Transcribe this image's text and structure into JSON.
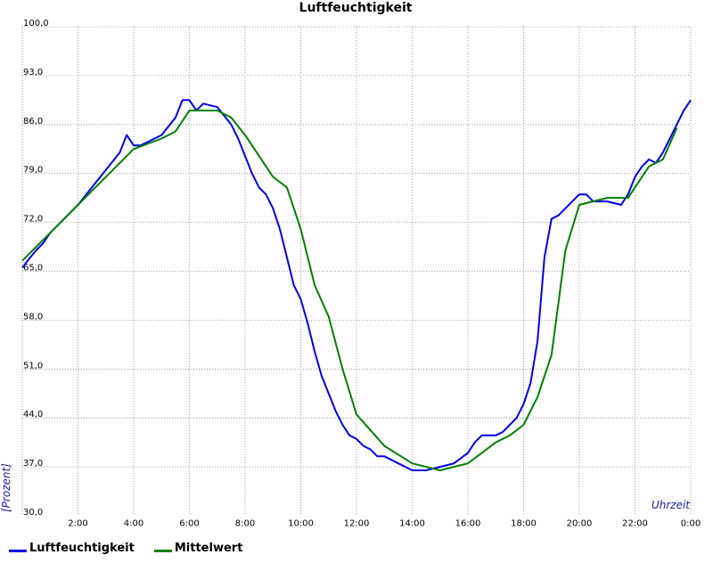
{
  "chart_data": {
    "type": "line",
    "title": "Luftfeuchtigkeit",
    "ylabel": "[Prozent]",
    "xlabel": "Uhrzeit",
    "ylim": [
      30,
      100
    ],
    "xlim": [
      0,
      24
    ],
    "y_ticks": [
      "30,0",
      "37,0",
      "44,0",
      "51,0",
      "58,0",
      "65,0",
      "72,0",
      "79,0",
      "86,0",
      "93,0",
      "100,0"
    ],
    "x_ticks": [
      "2:00",
      "4:00",
      "6:00",
      "8:00",
      "10:00",
      "12:00",
      "14:00",
      "16:00",
      "18:00",
      "20:00",
      "22:00",
      "0:00"
    ],
    "grid": true,
    "legend_position": "bottom-left",
    "series": [
      {
        "name": "Luftfeuchtigkeit",
        "color": "#0000ee",
        "x": [
          0,
          0.25,
          0.5,
          0.75,
          1,
          1.5,
          2,
          2.5,
          3,
          3.5,
          3.75,
          4,
          4.25,
          4.5,
          5,
          5.5,
          5.75,
          6,
          6.25,
          6.5,
          7,
          7.5,
          7.75,
          8,
          8.25,
          8.5,
          8.75,
          9,
          9.25,
          9.5,
          9.75,
          10,
          10.25,
          10.5,
          10.75,
          11,
          11.25,
          11.5,
          11.75,
          12,
          12.25,
          12.5,
          12.75,
          13,
          13.5,
          14,
          14.5,
          15,
          15.5,
          16,
          16.25,
          16.5,
          17,
          17.25,
          17.5,
          17.75,
          18,
          18.25,
          18.5,
          18.75,
          19,
          19.25,
          19.5,
          20,
          20.25,
          20.5,
          21,
          21.5,
          21.75,
          22,
          22.25,
          22.5,
          22.75,
          23,
          23.25,
          23.5,
          23.75,
          24
        ],
        "y": [
          65.5,
          66.8,
          68.0,
          69.0,
          70.5,
          72.5,
          74.5,
          77.0,
          79.5,
          82.0,
          84.5,
          83.0,
          83.0,
          83.5,
          84.5,
          87.0,
          89.5,
          89.5,
          88.0,
          89.0,
          88.5,
          86.0,
          84.0,
          81.5,
          79.0,
          77.0,
          76.0,
          74.0,
          71.0,
          67.0,
          63.0,
          61.0,
          57.5,
          53.5,
          50.0,
          47.5,
          45.0,
          43.0,
          41.5,
          41.0,
          40.0,
          39.5,
          38.5,
          38.5,
          37.5,
          36.5,
          36.5,
          37.0,
          37.5,
          39.0,
          40.5,
          41.5,
          41.5,
          42.0,
          43.0,
          44.0,
          46.0,
          49.0,
          55.0,
          67.0,
          72.5,
          73.0,
          74.0,
          76.0,
          76.0,
          75.0,
          75.0,
          74.5,
          76.0,
          78.5,
          80.0,
          81.0,
          80.5,
          82.0,
          84.0,
          86.0,
          88.0,
          89.5
        ]
      },
      {
        "name": "Mittelwert",
        "color": "#008000",
        "x": [
          0,
          1,
          2,
          3,
          4,
          5,
          5.5,
          6,
          7,
          7.5,
          8,
          9,
          9.5,
          10,
          10.5,
          11,
          11.5,
          12,
          13,
          14,
          15,
          16,
          17,
          17.5,
          18,
          18.5,
          19,
          19.5,
          20,
          21,
          21.75,
          22,
          22.5,
          23,
          23.5
        ],
        "y": [
          66.5,
          70.5,
          74.5,
          78.5,
          82.5,
          84.0,
          85.0,
          88.0,
          88.0,
          87.0,
          84.5,
          78.5,
          77.0,
          71.0,
          63.0,
          58.5,
          51.0,
          44.5,
          40.0,
          37.5,
          36.5,
          37.5,
          40.5,
          41.5,
          43.0,
          47.0,
          53.0,
          68.0,
          74.5,
          75.5,
          75.5,
          77.0,
          80.0,
          81.0,
          85.5
        ]
      }
    ]
  }
}
